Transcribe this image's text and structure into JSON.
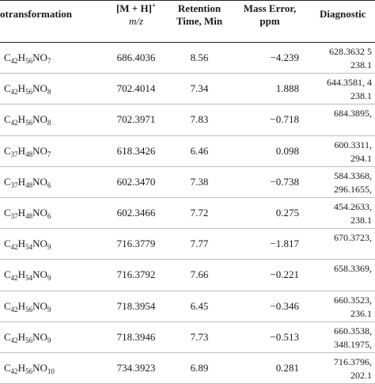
{
  "header": {
    "col1": "otransformation",
    "col2_main": "[M + H]",
    "col2_sup": "+",
    "col2_sub": "m/z",
    "col3_line1": "Retention",
    "col3_line2": "Time, Min",
    "col4_line1": "Mass Error,",
    "col4_line2": "ppm",
    "col5": "Diagnostic"
  },
  "rows": [
    {
      "formula": [
        [
          "C",
          "42"
        ],
        [
          "H",
          "56"
        ],
        [
          "NO",
          "7"
        ]
      ],
      "mz": "686.4036",
      "rt": "8.56",
      "err": "−4.239",
      "diag": [
        "628.3632 5",
        "238.1"
      ]
    },
    {
      "formula": [
        [
          "C",
          "42"
        ],
        [
          "H",
          "56"
        ],
        [
          "NO",
          "8"
        ]
      ],
      "mz": "702.4014",
      "rt": "7.34",
      "err": "1.888",
      "diag": [
        "644.3581, 4",
        "238.1"
      ]
    },
    {
      "formula": [
        [
          "C",
          "42"
        ],
        [
          "H",
          "56"
        ],
        [
          "NO",
          "8"
        ]
      ],
      "mz": "702.3971",
      "rt": "7.83",
      "err": "−0.718",
      "diag": [
        "684.3895,",
        ""
      ]
    },
    {
      "formula": [
        [
          "C",
          "37"
        ],
        [
          "H",
          "48"
        ],
        [
          "NO",
          "7"
        ]
      ],
      "mz": "618.3426",
      "rt": "6.46",
      "err": "0.098",
      "diag": [
        "600.3311,",
        "294.1"
      ]
    },
    {
      "formula": [
        [
          "C",
          "37"
        ],
        [
          "H",
          "48"
        ],
        [
          "NO",
          "6"
        ]
      ],
      "mz": "602.3470",
      "rt": "7.38",
      "err": "−0.738",
      "diag": [
        "584.3368,",
        "296.1655,"
      ]
    },
    {
      "formula": [
        [
          "C",
          "37"
        ],
        [
          "H",
          "48"
        ],
        [
          "NO",
          "6"
        ]
      ],
      "mz": "602.3466",
      "rt": "7.72",
      "err": "0.275",
      "diag": [
        "454.2633,",
        "238.1"
      ]
    },
    {
      "formula": [
        [
          "C",
          "42"
        ],
        [
          "H",
          "54"
        ],
        [
          "NO",
          "9"
        ]
      ],
      "mz": "716.3779",
      "rt": "7.77",
      "err": "−1.817",
      "diag": [
        "670.3723,",
        ""
      ]
    },
    {
      "formula": [
        [
          "C",
          "42"
        ],
        [
          "H",
          "54"
        ],
        [
          "NO",
          "9"
        ]
      ],
      "mz": "716.3792",
      "rt": "7.66",
      "err": "−0.221",
      "diag": [
        "658.3369,",
        ""
      ]
    },
    {
      "formula": [
        [
          "C",
          "42"
        ],
        [
          "H",
          "56"
        ],
        [
          "NO",
          "9"
        ]
      ],
      "mz": "718.3954",
      "rt": "6.45",
      "err": "−0.346",
      "diag": [
        "660.3523,",
        "236.1"
      ]
    },
    {
      "formula": [
        [
          "C",
          "42"
        ],
        [
          "H",
          "56"
        ],
        [
          "NO",
          "9"
        ]
      ],
      "mz": "718.3946",
      "rt": "7.73",
      "err": "−0.513",
      "diag": [
        "660.3538,",
        "348.1975,"
      ]
    },
    {
      "formula": [
        [
          "C",
          "42"
        ],
        [
          "H",
          "56"
        ],
        [
          "NO",
          "10"
        ]
      ],
      "mz": "734.3923",
      "rt": "6.89",
      "err": "0.281",
      "diag": [
        "716.3796,",
        "202.1"
      ]
    }
  ]
}
